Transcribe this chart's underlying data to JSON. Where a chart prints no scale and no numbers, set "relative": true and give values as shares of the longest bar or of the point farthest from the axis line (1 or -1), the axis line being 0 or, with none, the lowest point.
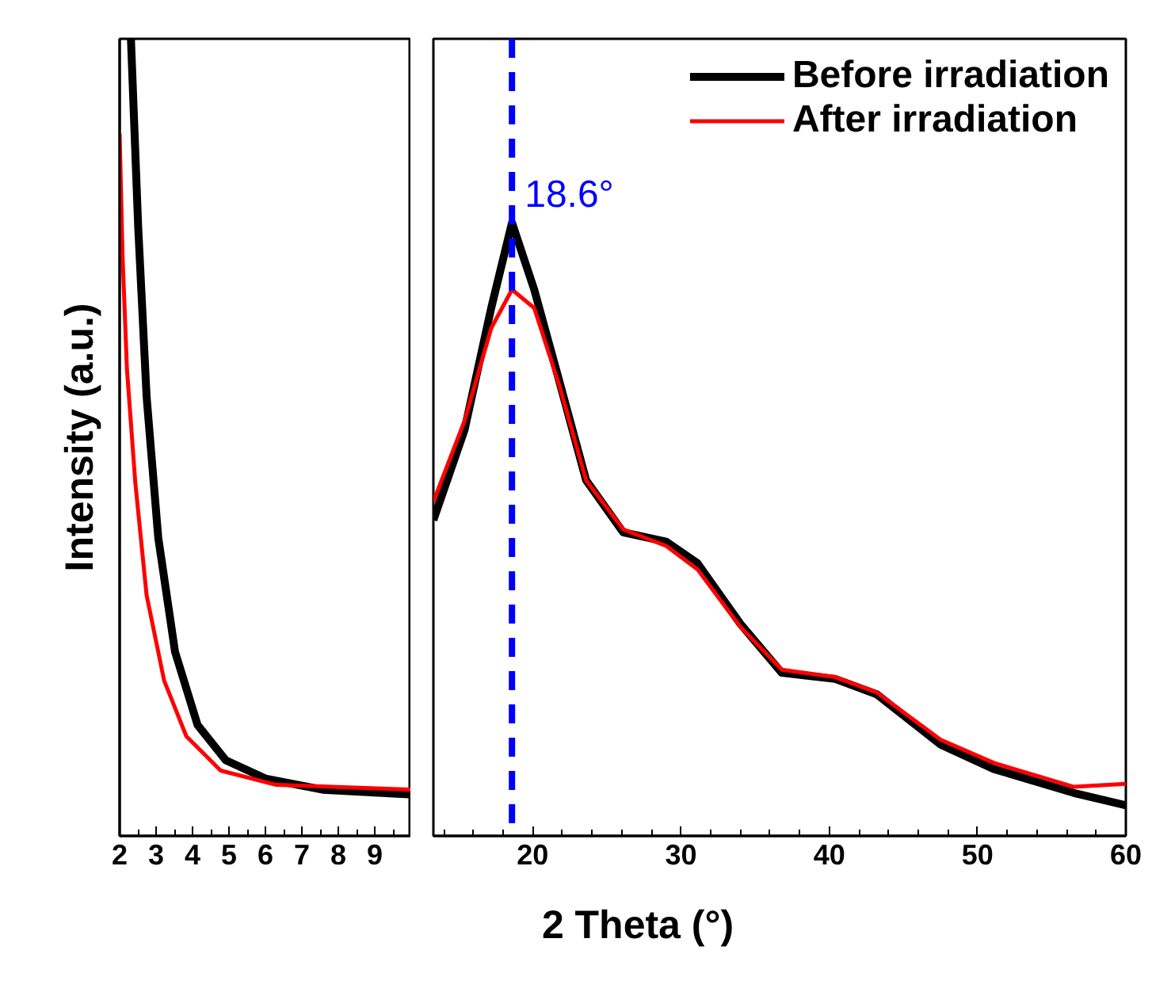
{
  "chart_data": [
    {
      "type": "line",
      "ylabel": "Intensity (a.u.)",
      "relative": true,
      "xlim": [
        2,
        10
      ],
      "xticks": [
        2,
        3,
        4,
        5,
        6,
        7,
        8,
        9
      ],
      "line_style": "solid",
      "series": [
        {
          "color": "#000000",
          "x": [
            2.31,
            2.51,
            2.74,
            3.06,
            3.52,
            4.14,
            4.91,
            6.0,
            7.57,
            10.0
          ],
          "values": [
            1.0,
            0.763,
            0.551,
            0.374,
            0.231,
            0.139,
            0.095,
            0.072,
            0.058,
            0.052
          ]
        },
        {
          "color": "#ff0000",
          "x": [
            2.0,
            2.08,
            2.2,
            2.43,
            2.74,
            3.22,
            3.83,
            4.77,
            6.3,
            10.0
          ],
          "values": [
            0.881,
            0.728,
            0.586,
            0.443,
            0.302,
            0.195,
            0.125,
            0.082,
            0.064,
            0.058
          ]
        }
      ]
    },
    {
      "type": "line",
      "xlabel": "2 Theta (°)",
      "relative": true,
      "xlim": [
        13.3,
        60
      ],
      "xticks": [
        20,
        30,
        40,
        50,
        60
      ],
      "legend": "top right",
      "line_style": "solid",
      "ref_lines": [
        {
          "axis": "x",
          "value": 18.6,
          "label": "18.6°",
          "color": "#0000ff",
          "line_style": "dashed"
        }
      ],
      "series": [
        {
          "name": "Before irradiation",
          "color": "#000000",
          "x": [
            13.3,
            15.4,
            17.2,
            18.6,
            20.1,
            21.8,
            23.6,
            26.1,
            29.0,
            31.1,
            34.0,
            36.8,
            40.4,
            43.2,
            47.5,
            51.1,
            56.5,
            60.0
          ],
          "values": [
            0.515,
            0.662,
            0.861,
            1.0,
            0.891,
            0.741,
            0.58,
            0.495,
            0.48,
            0.445,
            0.346,
            0.266,
            0.256,
            0.231,
            0.149,
            0.109,
            0.07,
            0.05
          ]
        },
        {
          "name": "After irradiation",
          "color": "#ff0000",
          "x": [
            13.3,
            15.4,
            17.2,
            18.6,
            20.1,
            21.8,
            23.6,
            26.1,
            29.0,
            31.1,
            34.0,
            36.8,
            40.4,
            43.2,
            47.5,
            51.1,
            56.5,
            60.0
          ],
          "values": [
            0.545,
            0.677,
            0.828,
            0.891,
            0.861,
            0.734,
            0.58,
            0.5,
            0.473,
            0.435,
            0.341,
            0.271,
            0.259,
            0.234,
            0.157,
            0.119,
            0.08,
            0.085
          ]
        }
      ]
    }
  ]
}
